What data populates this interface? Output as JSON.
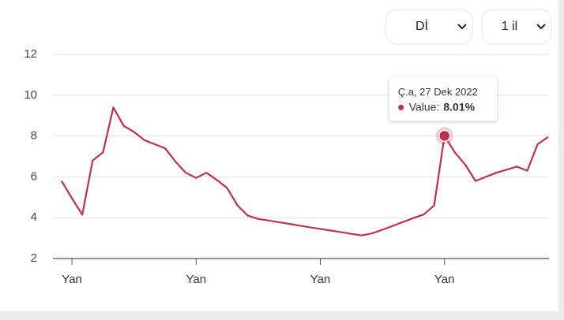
{
  "controls": [
    {
      "label": "Dİ"
    },
    {
      "label": "1 il"
    }
  ],
  "chart_data": {
    "type": "line",
    "categories": [
      null,
      "Yan",
      null,
      null,
      null,
      null,
      null,
      null,
      null,
      null,
      null,
      null,
      null,
      "Yan",
      null,
      null,
      null,
      null,
      null,
      null,
      null,
      null,
      null,
      null,
      null,
      "Yan",
      null,
      null,
      null,
      null,
      null,
      null,
      null,
      null,
      null,
      null,
      null,
      "Yan",
      null,
      null,
      null,
      null,
      null,
      null,
      null,
      null,
      null,
      null
    ],
    "series": [
      {
        "name": "Value",
        "color": "#c0304a",
        "values": [
          5.8,
          4.95,
          4.15,
          6.8,
          7.2,
          9.4,
          8.5,
          8.2,
          7.8,
          7.6,
          7.4,
          6.75,
          6.2,
          5.95,
          6.2,
          5.85,
          5.45,
          4.6,
          4.1,
          3.94,
          3.86,
          3.78,
          3.7,
          3.61,
          3.53,
          3.45,
          3.37,
          3.29,
          3.21,
          3.13,
          3.23,
          3.41,
          3.6,
          3.79,
          3.98,
          4.16,
          4.6,
          8.01,
          7.2,
          6.6,
          5.8,
          6.0,
          6.2,
          6.35,
          6.5,
          6.3,
          7.6,
          7.95
        ]
      }
    ],
    "ylim": [
      2,
      12
    ],
    "yticks": [
      2,
      4,
      6,
      8,
      10,
      12
    ],
    "grid": true,
    "tooltip": {
      "title": "Ç.a, 27 Dek 2022",
      "label": "Value:",
      "value": 8.01,
      "value_label": "8.01%"
    }
  }
}
